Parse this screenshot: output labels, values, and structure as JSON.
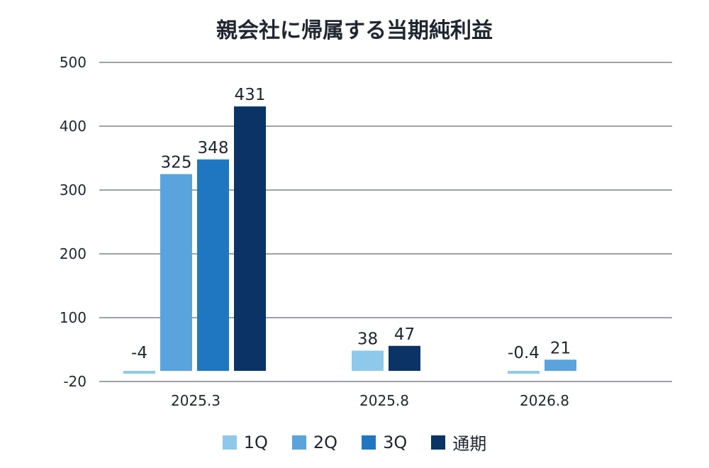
{
  "chart_data": {
    "type": "bar",
    "title": "親会社に帰属する当期純利益",
    "categories": [
      "2025.3",
      "2025.8",
      "2026.8"
    ],
    "series": [
      {
        "name": "1Q",
        "color": "#8ec9ec",
        "values": [
          -4,
          38,
          -0.4
        ],
        "labels": [
          "-4",
          "38",
          "-0.4"
        ]
      },
      {
        "name": "2Q",
        "color": "#5ba3dc",
        "values": [
          325,
          null,
          21
        ],
        "labels": [
          "325",
          "",
          "21"
        ]
      },
      {
        "name": "3Q",
        "color": "#1f77c2",
        "values": [
          348,
          null,
          null
        ],
        "labels": [
          "348",
          "",
          ""
        ]
      },
      {
        "name": "通期",
        "color": "#0b3366",
        "values": [
          431,
          47,
          null
        ],
        "labels": [
          "431",
          "47",
          ""
        ]
      }
    ],
    "yticks": [
      "500",
      "400",
      "300",
      "200",
      "100",
      "-20"
    ],
    "ylim": [
      -20,
      500
    ],
    "grid": true,
    "legend_position": "bottom"
  }
}
